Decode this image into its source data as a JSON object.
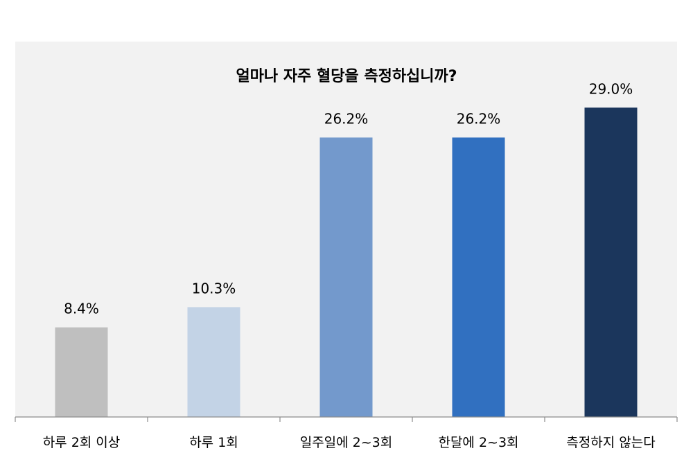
{
  "colors": {
    "plot_background": "#f2f2f2",
    "axis_line": "#8c8c8c",
    "bar_colors": [
      "#bfbfbf",
      "#c3d3e6",
      "#7399cc",
      "#3170c0",
      "#1b365c"
    ]
  },
  "chart_data": {
    "type": "bar",
    "title": "얼마나 자주 혈당을 측정하십니까?",
    "categories": [
      "하루 2회 이상",
      "하루 1회",
      "일주일에 2~3회",
      "한달에 2~3회",
      "측정하지 않는다"
    ],
    "values": [
      8.4,
      10.3,
      26.2,
      26.2,
      29.0
    ],
    "value_labels": [
      "8.4%",
      "10.3%",
      "26.2%",
      "26.2%",
      "29.0%"
    ],
    "unit": "%",
    "xlabel": "",
    "ylabel": "",
    "ylim": [
      0,
      35
    ],
    "grid": false,
    "legend": "none",
    "y_axis_visible": false
  }
}
